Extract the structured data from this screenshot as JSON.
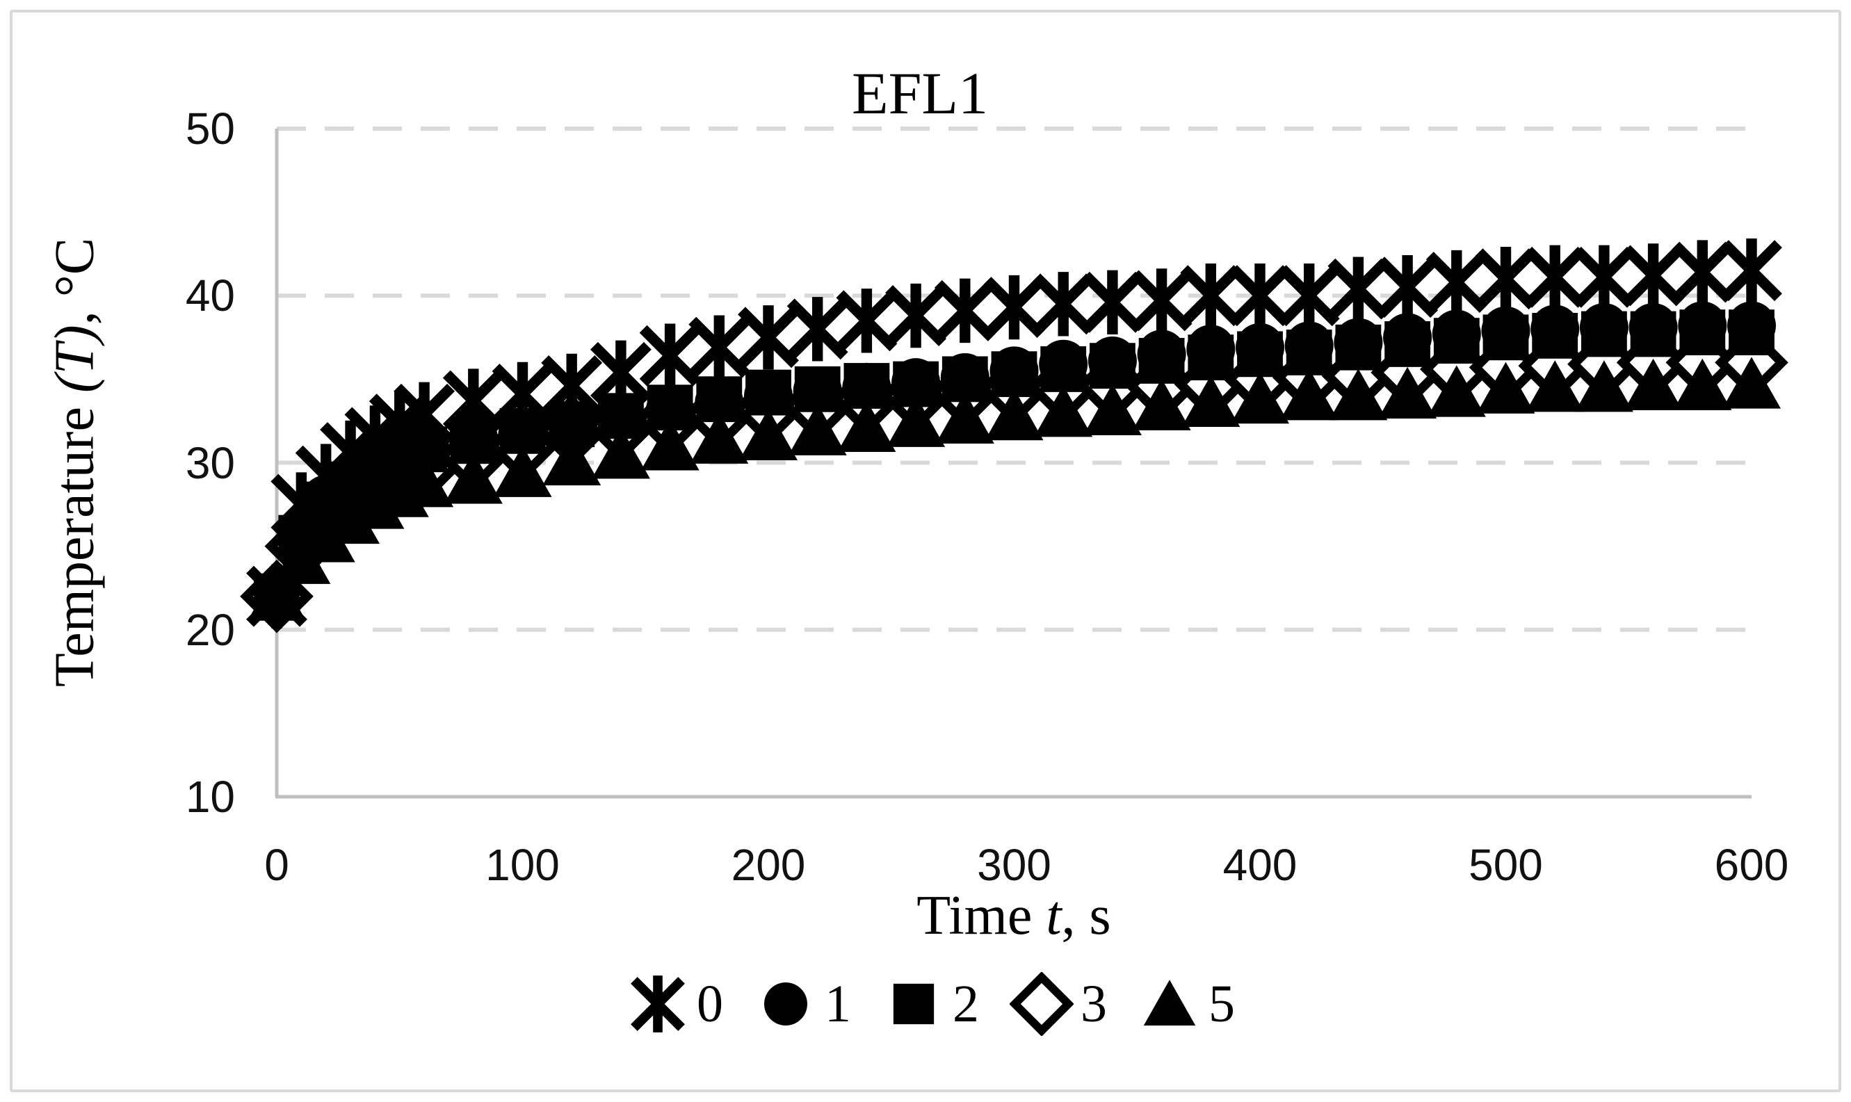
{
  "figure": {
    "title": "EFL1",
    "x_title_prefix": "Time ",
    "x_title_italic": "t",
    "x_title_suffix": ", s",
    "y_title_prefix": "Temperature ",
    "y_title_italic": "(T)",
    "y_title_suffix": ", °C"
  },
  "colors": {
    "marker": "#000000",
    "gridline": "#d9d9d9",
    "axis_line": "#bfbfbf",
    "frame_border": "#d9d9d9",
    "tick_text": "#111111",
    "open_marker_fill": "#ffffff"
  },
  "chart_data": {
    "type": "scatter",
    "title": "EFL1",
    "xlabel": "Time t, s",
    "ylabel": "Temperature (T), °C",
    "xlim": [
      0,
      600
    ],
    "ylim": [
      10,
      50
    ],
    "x_ticks": [
      "0",
      "100",
      "200",
      "300",
      "400",
      "500",
      "600"
    ],
    "y_ticks": [
      "50",
      "40",
      "30",
      "20",
      "10"
    ],
    "grid": "horizontal-dashed",
    "legend_position": "bottom",
    "x": [
      0,
      10,
      20,
      30,
      40,
      50,
      60,
      80,
      100,
      120,
      140,
      160,
      180,
      200,
      220,
      240,
      260,
      280,
      300,
      320,
      340,
      360,
      380,
      400,
      420,
      440,
      460,
      480,
      500,
      520,
      540,
      560,
      580,
      600
    ],
    "series": [
      {
        "name": "0",
        "marker": "asterisk",
        "values": [
          22.0,
          27.5,
          29.2,
          30.6,
          31.5,
          32.3,
          32.9,
          33.7,
          34.1,
          34.6,
          35.4,
          36.4,
          36.9,
          37.5,
          38.0,
          38.5,
          38.8,
          39.1,
          39.3,
          39.5,
          39.6,
          39.7,
          40.0,
          40.0,
          40.0,
          40.4,
          40.5,
          40.8,
          41.0,
          41.1,
          41.1,
          41.2,
          41.4,
          41.5
        ]
      },
      {
        "name": "1",
        "marker": "circle",
        "values": [
          22.0,
          25.8,
          27.8,
          29.0,
          29.9,
          30.6,
          31.0,
          31.5,
          31.7,
          32.2,
          32.6,
          33.1,
          33.6,
          34.0,
          34.3,
          34.5,
          34.8,
          35.1,
          35.5,
          35.9,
          36.1,
          36.5,
          36.8,
          36.9,
          37.0,
          37.2,
          37.5,
          37.7,
          37.9,
          38.0,
          38.1,
          38.1,
          38.2,
          38.2
        ]
      },
      {
        "name": "2",
        "marker": "square",
        "values": [
          22.0,
          25.5,
          27.5,
          28.7,
          29.6,
          30.3,
          30.8,
          31.3,
          31.9,
          32.3,
          32.8,
          33.3,
          33.8,
          34.2,
          34.4,
          34.6,
          34.7,
          35.0,
          35.3,
          35.6,
          35.8,
          36.1,
          36.3,
          36.5,
          36.6,
          36.9,
          37.1,
          37.3,
          37.5,
          37.6,
          37.7,
          37.7,
          37.8,
          37.8
        ]
      },
      {
        "name": "3",
        "marker": "diamond-open",
        "values": [
          22.0,
          25.0,
          26.4,
          27.5,
          28.4,
          29.1,
          29.7,
          30.4,
          31.0,
          31.9,
          32.2,
          32.6,
          32.9,
          33.2,
          33.4,
          33.8,
          34.0,
          34.2,
          34.4,
          34.5,
          34.6,
          34.6,
          34.7,
          35.0,
          35.1,
          35.2,
          35.4,
          35.6,
          35.7,
          35.8,
          35.9,
          36.0,
          36.0,
          36.0
        ]
      },
      {
        "name": "5",
        "marker": "triangle",
        "values": [
          22.0,
          24.2,
          25.5,
          26.6,
          27.5,
          28.2,
          28.8,
          29.0,
          29.4,
          30.1,
          30.5,
          31.0,
          31.4,
          31.6,
          31.9,
          32.1,
          32.4,
          32.6,
          32.8,
          33.0,
          33.1,
          33.4,
          33.6,
          33.8,
          34.0,
          34.0,
          34.1,
          34.2,
          34.4,
          34.5,
          34.5,
          34.6,
          34.6,
          34.7
        ]
      }
    ]
  }
}
